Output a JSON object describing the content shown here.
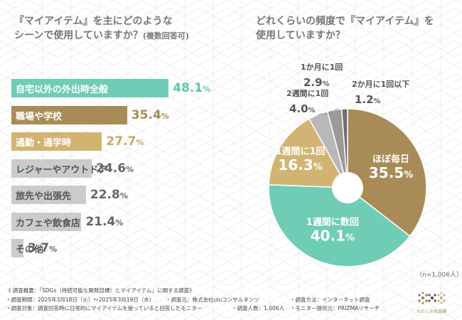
{
  "colors": {
    "teal": "#6fcdb5",
    "teal_text": "#5fc4aa",
    "brown": "#a88b56",
    "brown_text": "#a88b56",
    "tan": "#d2b472",
    "tan_text": "#c8a862",
    "grey_bar": "#cbcbcb",
    "grey_text": "#666666",
    "grey_light": "#b8b8b8",
    "grey_mid": "#9a9a9a",
    "grey_dark": "#707070"
  },
  "chart_data": [
    {
      "type": "bar",
      "title": "『マイアイテム』を主にどのような\nシーンで使用していますか？（複数回答可）",
      "title_line1": "『マイアイテム』を主にどのような",
      "title_line2": "シーンで使用していますか？",
      "title_note": "(複数回答可)",
      "categories": [
        "自宅以外の外出時全般",
        "職場や学校",
        "通勤・通学時",
        "レジャーやアウトドア",
        "旅先や出張先",
        "カフェや飲食店",
        "その他"
      ],
      "values": [
        48.1,
        35.4,
        27.7,
        24.6,
        22.8,
        21.4,
        3.7
      ],
      "value_labels": [
        "48.1",
        "35.4",
        "27.7",
        "24.6",
        "22.8",
        "21.4",
        "3.7"
      ],
      "unit": "%",
      "xlim": [
        0,
        70
      ]
    },
    {
      "type": "pie",
      "title": "どれくらいの頻度で『マイアイテム』を\n使用していますか？",
      "title_line1": "どれくらいの頻度で『マイアイテム』を",
      "title_line2": "使用していますか？",
      "labels": [
        "ほぼ毎日",
        "1週間に数回",
        "1週間に1回",
        "2週間に1回",
        "1か月に1回",
        "2か月に1回以下"
      ],
      "values": [
        35.5,
        40.1,
        16.3,
        4.0,
        2.9,
        1.2
      ],
      "value_labels": [
        "35.5",
        "40.1",
        "16.3",
        "4.0",
        "2.9",
        "1.2"
      ],
      "unit": "%",
      "start": "12 o'clock, clockwise",
      "sample_note": "（n=1,006人）"
    }
  ],
  "footer": {
    "line1": "《 調査概要：「SDGs（持続可能な開発目標）とマイアイテム」に関する調査》",
    "period": "・調査期間：2025年3月18日（火）～2025年3月19日（水）",
    "company": "・調査元：株式会社uluコンサルタンツ",
    "method": "・調査方法：インターネット調査",
    "target": "・調査対象：調査回答時に日常的にマイアイテムを使っていると回答したモニター",
    "count": "・調査人数：1,006人",
    "provider": "・モニター提供元：PRIZMAリサーチ"
  },
  "logo": {
    "text": "わたしの名品箱",
    "icon": "flower-logo-icon"
  }
}
